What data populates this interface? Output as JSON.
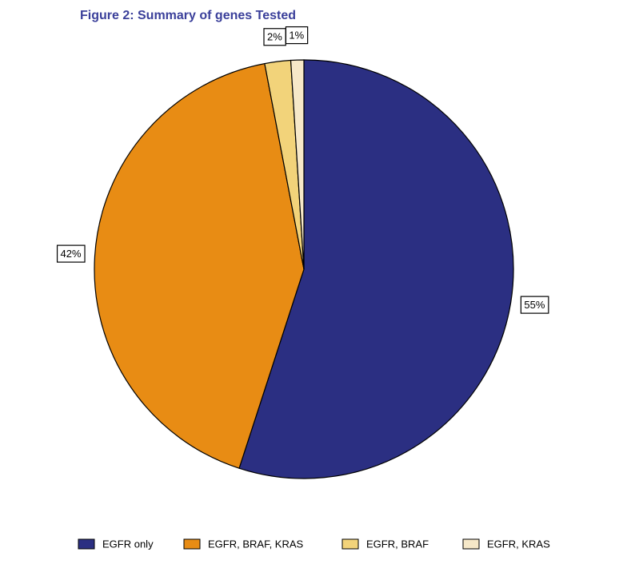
{
  "chart_data": {
    "type": "pie",
    "title": "Figure 2: Summary of genes Tested",
    "series": [
      {
        "name": "EGFR only",
        "color": "#2b2f82",
        "values": [
          55
        ],
        "value_labels": [
          "55%"
        ]
      },
      {
        "name": "EGFR, BRAF, KRAS",
        "color": "#e88c14",
        "values": [
          42
        ],
        "value_labels": [
          "42%"
        ]
      },
      {
        "name": "EGFR, BRAF",
        "color": "#f2d37a",
        "values": [
          2
        ],
        "value_labels": [
          "2%"
        ]
      },
      {
        "name": "EGFR, KRAS",
        "color": "#f6e8c8",
        "values": [
          1
        ],
        "value_labels": [
          "1%"
        ]
      }
    ]
  }
}
